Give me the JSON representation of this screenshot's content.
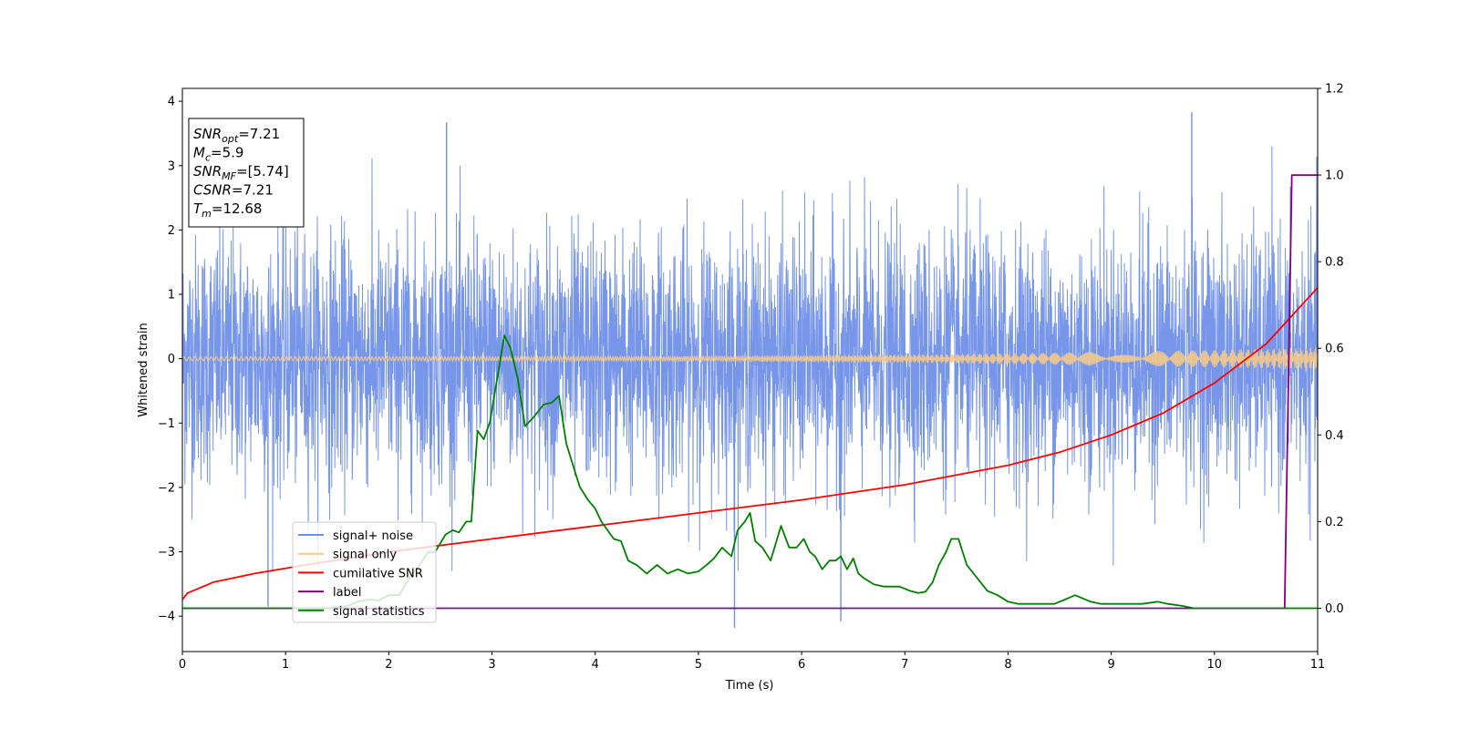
{
  "chart_data": {
    "type": "line",
    "xlabel": "Time (s)",
    "ylabel": "Whitened strain",
    "xlim": [
      0,
      11
    ],
    "ylim": [
      -4.55,
      4.2
    ],
    "y2lim": [
      -0.1,
      1.2
    ],
    "x_ticks": [
      "0",
      "1",
      "2",
      "3",
      "4",
      "5",
      "6",
      "7",
      "8",
      "9",
      "10",
      "11"
    ],
    "y_ticks": [
      "4",
      "3",
      "2",
      "1",
      "0",
      "−1",
      "−2",
      "−3",
      "−4"
    ],
    "y2_ticks": [
      "0.0",
      "0.2",
      "0.4",
      "0.6",
      "0.8",
      "1.0",
      "1.2"
    ],
    "grid": false,
    "legend_position": "lower-left",
    "legend": [
      {
        "label": "signal+ noise",
        "color": "#7090e8"
      },
      {
        "label": "signal only",
        "color": "#f5c98a"
      },
      {
        "label": "cumilative SNR",
        "color": "#ff0000"
      },
      {
        "label": "label",
        "color": "#800080"
      },
      {
        "label": "signal statistics",
        "color": "#008000"
      }
    ],
    "info_box": [
      {
        "main": "SNR",
        "sub": "opt",
        "value": "=7.21"
      },
      {
        "main": "M",
        "sub": "c",
        "value": "=5.9"
      },
      {
        "main": "SNR",
        "sub": "MF",
        "value": "=[5.74]"
      },
      {
        "main": "CSNR",
        "sub": "",
        "value": "=7.21"
      },
      {
        "main": "T",
        "sub": "m",
        "value": "=12.68"
      }
    ],
    "series": [
      {
        "name": "signal+ noise",
        "axis": "left",
        "color": "#7090e8",
        "description_range": [
          -4.2,
          3.85
        ],
        "notable_peaks": [
          [
            2.56,
            3.67
          ],
          [
            9.78,
            3.83
          ],
          [
            5.35,
            -4.18
          ],
          [
            6.38,
            -4.08
          ],
          [
            0.83,
            -3.85
          ]
        ]
      },
      {
        "name": "signal only",
        "axis": "left",
        "color": "#f5c98a",
        "amplitude_start": 0.03,
        "amplitude_end": 0.17
      },
      {
        "name": "cumilative SNR",
        "axis": "right",
        "color": "#ff0000",
        "x": [
          0,
          0.05,
          0.3,
          0.7,
          1.2,
          2,
          3,
          4,
          5,
          6,
          7,
          8,
          8.5,
          9,
          9.5,
          10,
          10.5,
          11
        ],
        "y": [
          0.02,
          0.035,
          0.06,
          0.08,
          0.1,
          0.13,
          0.16,
          0.19,
          0.22,
          0.25,
          0.285,
          0.33,
          0.36,
          0.4,
          0.45,
          0.52,
          0.61,
          0.74
        ]
      },
      {
        "name": "label",
        "axis": "right",
        "color": "#800080",
        "x": [
          0,
          10.68,
          10.75,
          10.78,
          11
        ],
        "y": [
          0.0,
          0.0,
          1.0,
          1.0,
          1.0
        ]
      },
      {
        "name": "signal statistics",
        "axis": "right",
        "color": "#008000",
        "x": [
          0,
          1.4,
          1.6,
          1.7,
          1.8,
          1.9,
          2.0,
          2.1,
          2.2,
          2.3,
          2.38,
          2.45,
          2.55,
          2.62,
          2.68,
          2.75,
          2.8,
          2.86,
          2.92,
          2.98,
          3.05,
          3.12,
          3.18,
          3.25,
          3.32,
          3.4,
          3.5,
          3.58,
          3.65,
          3.72,
          3.85,
          3.93,
          4.0,
          4.06,
          4.12,
          4.18,
          4.25,
          4.32,
          4.4,
          4.5,
          4.6,
          4.7,
          4.8,
          4.9,
          5.0,
          5.08,
          5.15,
          5.23,
          5.32,
          5.38,
          5.45,
          5.5,
          5.55,
          5.62,
          5.7,
          5.8,
          5.88,
          5.95,
          6.02,
          6.08,
          6.13,
          6.2,
          6.27,
          6.33,
          6.38,
          6.44,
          6.5,
          6.55,
          6.6,
          6.7,
          6.8,
          6.95,
          7.05,
          7.13,
          7.2,
          7.27,
          7.33,
          7.4,
          7.45,
          7.52,
          7.6,
          7.7,
          7.8,
          7.9,
          8.0,
          8.1,
          8.2,
          8.35,
          8.45,
          8.55,
          8.6,
          8.65,
          8.7,
          8.8,
          8.9,
          9.0,
          9.1,
          9.2,
          9.3,
          9.45,
          9.55,
          9.7,
          9.8,
          9.9,
          10.0,
          10.2,
          10.4,
          10.6,
          10.68,
          10.75,
          11
        ],
        "y": [
          0.0,
          0.0,
          0.005,
          0.015,
          0.02,
          0.018,
          0.03,
          0.03,
          0.07,
          0.1,
          0.13,
          0.13,
          0.17,
          0.18,
          0.175,
          0.2,
          0.2,
          0.41,
          0.39,
          0.43,
          0.53,
          0.63,
          0.6,
          0.53,
          0.42,
          0.44,
          0.47,
          0.475,
          0.49,
          0.38,
          0.28,
          0.25,
          0.23,
          0.2,
          0.18,
          0.16,
          0.155,
          0.11,
          0.1,
          0.08,
          0.1,
          0.08,
          0.09,
          0.08,
          0.085,
          0.1,
          0.115,
          0.14,
          0.12,
          0.18,
          0.2,
          0.22,
          0.155,
          0.14,
          0.11,
          0.19,
          0.14,
          0.14,
          0.16,
          0.13,
          0.12,
          0.09,
          0.11,
          0.11,
          0.12,
          0.09,
          0.115,
          0.08,
          0.07,
          0.055,
          0.05,
          0.05,
          0.04,
          0.035,
          0.038,
          0.06,
          0.1,
          0.13,
          0.16,
          0.16,
          0.1,
          0.07,
          0.04,
          0.03,
          0.015,
          0.01,
          0.01,
          0.01,
          0.01,
          0.02,
          0.025,
          0.03,
          0.025,
          0.015,
          0.01,
          0.01,
          0.01,
          0.01,
          0.01,
          0.015,
          0.01,
          0.005,
          0.0,
          0.0,
          0.0,
          0.0,
          0.0,
          0.0,
          0.0,
          0.0,
          0.0
        ]
      }
    ]
  }
}
